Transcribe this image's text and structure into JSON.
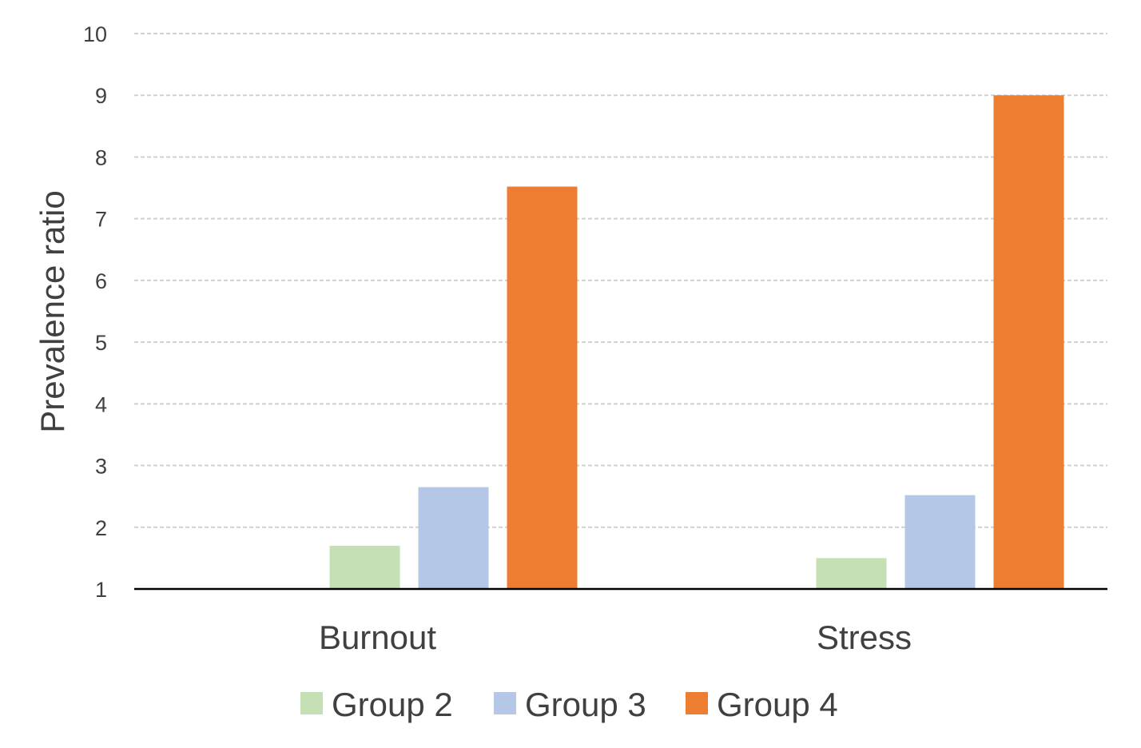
{
  "chart_data": {
    "type": "bar",
    "title": "",
    "xlabel": "",
    "ylabel": "Prevalence ratio",
    "categories": [
      "Burnout",
      "Stress"
    ],
    "series": [
      {
        "name": "Group 2",
        "values": [
          1.7,
          1.5
        ],
        "color": "#c5e0b4"
      },
      {
        "name": "Group 3",
        "values": [
          2.65,
          2.52
        ],
        "color": "#b4c7e7"
      },
      {
        "name": "Group 4",
        "values": [
          7.52,
          9.0
        ],
        "color": "#ed7d31"
      }
    ],
    "ylim": [
      1,
      10
    ],
    "yticks": [
      "1",
      "2",
      "3",
      "4",
      "5",
      "6",
      "7",
      "8",
      "9",
      "10"
    ],
    "grid": true,
    "legend_position": "bottom"
  }
}
